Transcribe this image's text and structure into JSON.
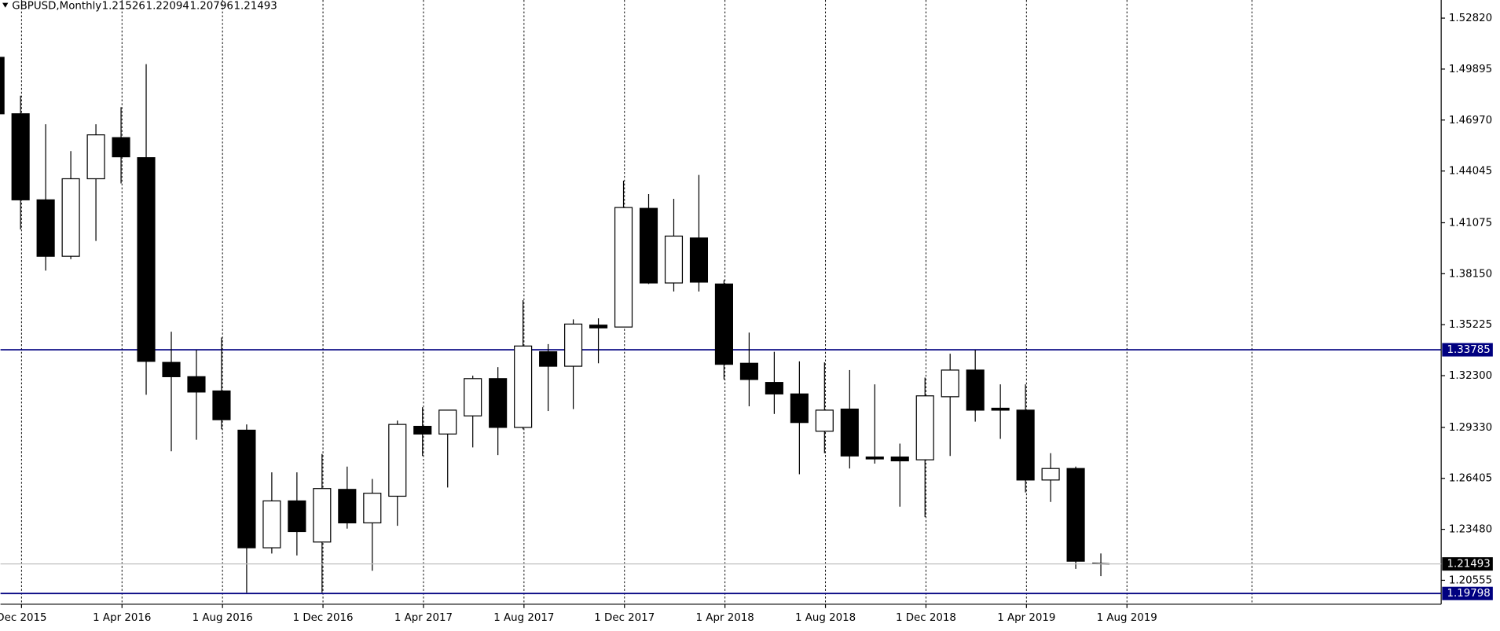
{
  "chart_data": {
    "type": "candlestick",
    "title": "GBPUSD,Monthly",
    "categories": [
      null,
      "Dec 2015",
      null,
      null,
      null,
      "1 Apr 2016",
      null,
      null,
      null,
      "1 Aug 2016",
      null,
      null,
      null,
      "1 Dec 2016",
      null,
      null,
      null,
      "1 Apr 2017",
      null,
      null,
      null,
      "1 Aug 2017",
      null,
      null,
      null,
      "1 Dec 2017",
      null,
      null,
      null,
      "1 Apr 2018",
      null,
      null,
      null,
      "1 Aug 2018",
      null,
      null,
      null,
      "1 Dec 2018",
      null,
      null,
      null,
      "1 Apr 2019",
      null,
      null,
      null,
      "1 Aug 2019"
    ],
    "open": [
      1.5057,
      1.4733,
      1.4239,
      1.3915,
      1.436,
      1.4596,
      1.4481,
      1.3306,
      1.3224,
      1.3142,
      1.2917,
      1.2242,
      1.2511,
      1.2275,
      1.2577,
      1.2385,
      1.2538,
      1.2939,
      1.2895,
      1.2999,
      1.3213,
      1.2933,
      1.3367,
      1.3284,
      1.352,
      1.3509,
      1.419,
      1.3762,
      1.402,
      1.3756,
      1.3301,
      1.3191,
      1.3125,
      1.2911,
      1.3038,
      1.2763,
      1.2763,
      1.2747,
      1.3109,
      1.3262,
      1.3043,
      1.3032,
      1.2631,
      1.2697,
      1.21526,
      null
    ],
    "high": [
      1.5084,
      1.4837,
      1.4673,
      1.4519,
      1.4673,
      1.4771,
      1.5018,
      1.3482,
      1.3378,
      1.3449,
      1.295,
      1.2675,
      1.2675,
      1.278,
      1.2708,
      1.2637,
      1.2972,
      1.3049,
      1.3032,
      1.323,
      1.3279,
      1.3663,
      1.3411,
      1.3553,
      1.3559,
      1.4349,
      1.4272,
      1.4245,
      1.4382,
      1.3778,
      1.3477,
      1.3367,
      1.3312,
      1.3306,
      1.3262,
      1.318,
      1.284,
      1.3219,
      1.3356,
      1.3378,
      1.318,
      1.318,
      1.2785,
      1.2708,
      1.22094,
      null
    ],
    "low": [
      1.4733,
      1.4069,
      1.3833,
      1.3899,
      1.4003,
      1.4333,
      1.312,
      1.2796,
      1.2862,
      1.2922,
      1.1984,
      1.2209,
      1.2198,
      1.1984,
      1.2352,
      1.211,
      1.2368,
      1.2769,
      1.2588,
      1.2818,
      1.2774,
      1.2922,
      1.3027,
      1.3038,
      1.3301,
      1.3509,
      1.3756,
      1.3713,
      1.3713,
      1.3208,
      1.3054,
      1.301,
      1.2664,
      1.2785,
      1.2697,
      1.2725,
      1.2478,
      1.2418,
      1.2769,
      1.2966,
      1.2867,
      1.256,
      1.2505,
      1.2121,
      1.20796,
      null
    ],
    "close": [
      1.4733,
      1.4239,
      1.3915,
      1.436,
      1.4612,
      1.4486,
      1.3312,
      1.3224,
      1.3136,
      1.2977,
      1.2242,
      1.2511,
      1.2335,
      1.2582,
      1.2385,
      1.2555,
      1.295,
      1.2895,
      1.3032,
      1.3213,
      1.2933,
      1.34,
      1.3284,
      1.3526,
      1.3504,
      1.4195,
      1.3762,
      1.4031,
      1.3767,
      1.3295,
      1.3208,
      1.3125,
      1.2961,
      1.3032,
      1.2769,
      1.2752,
      1.2741,
      1.3114,
      1.3262,
      1.3032,
      1.3032,
      1.2631,
      1.2697,
      1.2165,
      1.21493,
      null
    ],
    "up_color": "#ffffff",
    "down_color": "#000000",
    "ylim": [
      1.1918,
      1.5386
    ],
    "yticks": [
      {
        "value": 1.5282,
        "label": "1.52820"
      },
      1.49895,
      {
        "value": 1.4697,
        "label": "1.46970"
      },
      1.44045,
      1.41075,
      {
        "value": 1.3815,
        "label": "1.38150"
      },
      1.35225,
      {
        "value": 1.323,
        "label": "1.32300"
      },
      {
        "value": 1.2933,
        "label": "1.29330"
      },
      1.26405,
      {
        "value": 1.2348,
        "label": "1.23480"
      },
      1.20555
    ],
    "lines": [
      {
        "value": 1.33785,
        "color": "#000080"
      },
      {
        "value": 1.19798,
        "color": "#000080"
      }
    ],
    "bid_color": "#c0c0c0"
  }
}
